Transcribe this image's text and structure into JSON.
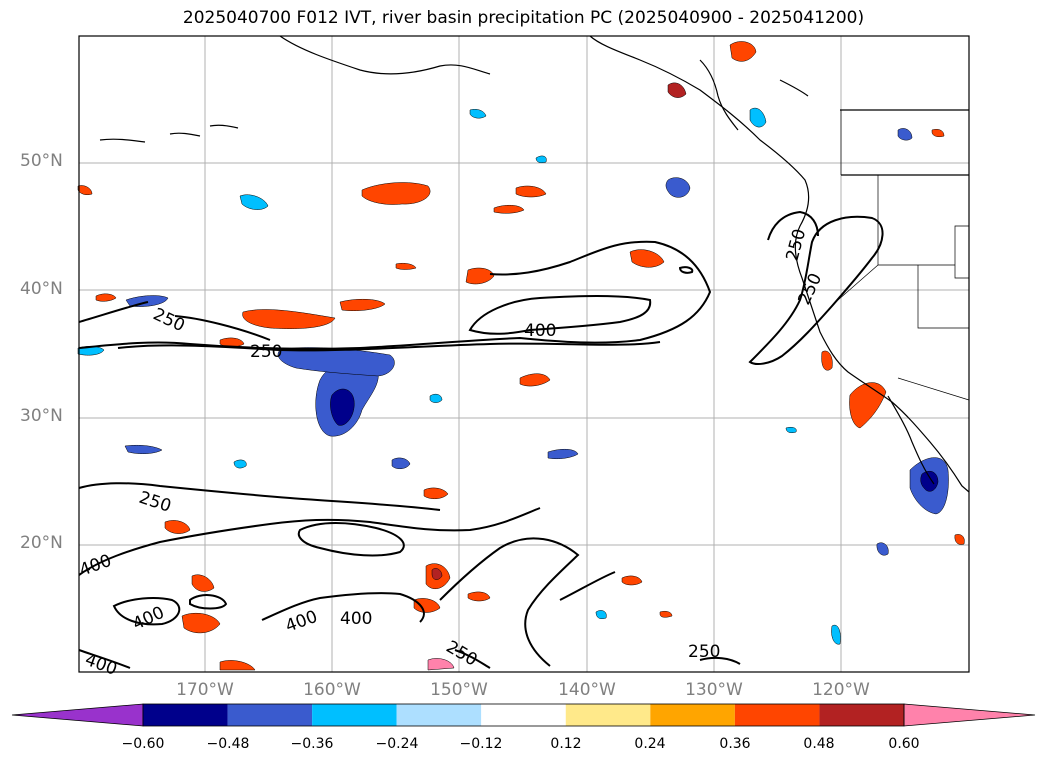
{
  "title": "2025040700 F012 IVT, river basin precipitation PC (2025040900 - 2025041200)",
  "lat_labels": [
    "50°N",
    "40°N",
    "30°N",
    "20°N"
  ],
  "lon_labels": [
    "170°W",
    "160°W",
    "150°W",
    "140°W",
    "130°W",
    "120°W"
  ],
  "contour_labels": {
    "c250_a": "250",
    "c250_b": "250",
    "c250_c": "250",
    "c250_d": "250",
    "c250_e": "250",
    "c250_f": "250",
    "c250_g": "250",
    "c400_a": "400",
    "c400_b": "400",
    "c400_c": "400",
    "c400_d": "400",
    "c400_e": "400",
    "c400_f": "400"
  },
  "colorbar": {
    "ticks": [
      "−0.60",
      "−0.48",
      "−0.36",
      "−0.24",
      "−0.12",
      "0.12",
      "0.24",
      "0.36",
      "0.48",
      "0.60"
    ],
    "colors": [
      "#9932CC",
      "#00008B",
      "#3A5BCE",
      "#00BFFF",
      "#ADDFFF",
      "#FFFFFF",
      "#FFE98A",
      "#FFA500",
      "#FF4500",
      "#B22222",
      "#FF82AB"
    ]
  },
  "colors": {
    "coast": "#000000",
    "grid": "#b0b0b0"
  }
}
